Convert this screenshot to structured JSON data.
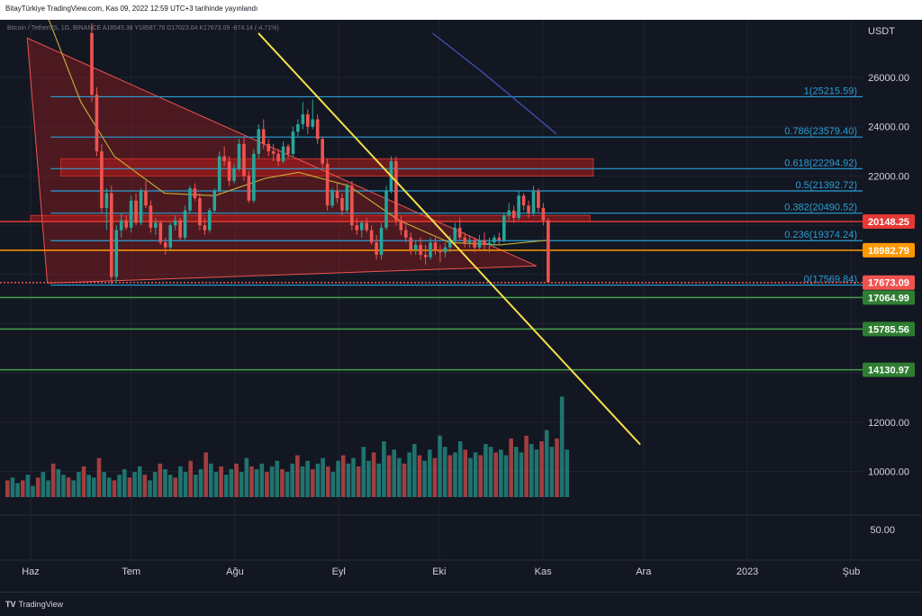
{
  "header": {
    "publisher_line": "BitayTürkiye TradingView.com, Kas 09, 2022 12:59 UTC+3 tarihinde yayınlandı"
  },
  "legend": {
    "symbol_line": "Bitcoin / TetherUS, 1G, BINANCE",
    "ohlc": "A18545.38 Y18587.76 D17023.04 K17673.09 -874.14 (-4.71%)"
  },
  "footer": {
    "logo_mark": "TV",
    "logo_text": "TradingView"
  },
  "colors": {
    "background": "#131722",
    "grid": "#1f2433",
    "candle_up": "#26a69a",
    "candle_down": "#ef5350",
    "trendline": "#f5e04a",
    "fib": "#2a9fd6",
    "resistance": "#e53935",
    "orange": "#ff9800",
    "support": "#43a047",
    "ma_slow": "#3f51b5",
    "ma_fast": "#c9b037",
    "zone": "#b71c1c"
  },
  "chart_data": {
    "type": "candlestick",
    "axis_unit": "USDT",
    "y_ticks": [
      26000,
      24000,
      22000,
      20000,
      18000,
      16000,
      14000,
      12000,
      10000
    ],
    "y_tick_labels": [
      "26000.00",
      "24000.00",
      "22000.00",
      "",
      "",
      "",
      "",
      "12000.00",
      "10000.00"
    ],
    "sub_pane_tick": {
      "value": 50,
      "label": "50.00"
    },
    "x_labels": [
      {
        "day": 0,
        "label": "Haz"
      },
      {
        "day": 30,
        "label": "Tem"
      },
      {
        "day": 61,
        "label": "Ağu"
      },
      {
        "day": 92,
        "label": "Eyl"
      },
      {
        "day": 122,
        "label": "Eki"
      },
      {
        "day": 153,
        "label": "Kas"
      },
      {
        "day": 183,
        "label": "Ara"
      },
      {
        "day": 214,
        "label": "2023"
      },
      {
        "day": 245,
        "label": "Şub"
      }
    ],
    "fib_levels": [
      {
        "ratio": "1",
        "value": 25215.59,
        "label": "1(25215.59)"
      },
      {
        "ratio": "0.786",
        "value": 23579.4,
        "label": "0.786(23579.40)"
      },
      {
        "ratio": "0.618",
        "value": 22294.92,
        "label": "0.618(22294.92)"
      },
      {
        "ratio": "0.5",
        "value": 21392.72,
        "label": "0.5(21392.72)"
      },
      {
        "ratio": "0.382",
        "value": 20490.52,
        "label": "0.382(20490.52)"
      },
      {
        "ratio": "0.236",
        "value": 19374.24,
        "label": "0.236(19374.24)"
      },
      {
        "ratio": "0",
        "value": 17569.84,
        "label": "0(17569.84)"
      }
    ],
    "price_lines": [
      {
        "value": 20148.25,
        "label": "20148.25",
        "color": "#e53935"
      },
      {
        "value": 18982.79,
        "label": "18982.79",
        "color": "#ff9800"
      },
      {
        "value": 17673.09,
        "label": "17673.09",
        "color": "#ef5350"
      },
      {
        "value": 17064.99,
        "label": "17064.99",
        "color": "#2e7d32"
      },
      {
        "value": 15785.56,
        "label": "15785.56",
        "color": "#2e7d32"
      },
      {
        "value": 14130.97,
        "label": "14130.97",
        "color": "#2e7d32"
      }
    ],
    "resistance_zones": [
      {
        "day_start": 9,
        "day_end": 168,
        "top": 22700,
        "bottom": 22000
      },
      {
        "day_start": 0,
        "day_end": 167,
        "top": 20400,
        "bottom": 20150
      }
    ],
    "triangle": [
      [
        -1,
        27600
      ],
      [
        5,
        17650
      ],
      [
        151,
        18350
      ]
    ],
    "trendline": [
      [
        68,
        27800
      ],
      [
        182,
        11100
      ]
    ],
    "ma_slow": [
      [
        120,
        27800
      ],
      [
        135,
        26200
      ],
      [
        150,
        24500
      ],
      [
        157,
        23700
      ]
    ],
    "ma_fast": [
      [
        5,
        28500
      ],
      [
        15,
        25000
      ],
      [
        25,
        22800
      ],
      [
        40,
        21300
      ],
      [
        55,
        21200
      ],
      [
        70,
        21900
      ],
      [
        80,
        22150
      ],
      [
        95,
        21600
      ],
      [
        110,
        20200
      ],
      [
        125,
        19300
      ],
      [
        140,
        19200
      ],
      [
        155,
        19400
      ]
    ],
    "candles": [
      [
        17,
        27800,
        28200,
        25000,
        25300
      ],
      [
        18,
        25300,
        25600,
        22800,
        23000
      ],
      [
        19,
        23000,
        23300,
        20500,
        20700
      ],
      [
        20,
        20700,
        21500,
        19800,
        21300
      ],
      [
        21,
        21300,
        21600,
        17600,
        17900
      ],
      [
        22,
        17900,
        20000,
        17650,
        19800
      ],
      [
        23,
        19800,
        20500,
        19500,
        20200
      ],
      [
        24,
        20200,
        20400,
        19800,
        19900
      ],
      [
        25,
        19900,
        21200,
        19700,
        21000
      ],
      [
        26,
        21000,
        21300,
        20000,
        20100
      ],
      [
        27,
        20100,
        21500,
        20000,
        21400
      ],
      [
        28,
        21400,
        21800,
        20700,
        20800
      ],
      [
        29,
        20800,
        21000,
        19700,
        19900
      ],
      [
        30,
        19900,
        20300,
        19600,
        20100
      ],
      [
        31,
        20100,
        20200,
        19200,
        19300
      ],
      [
        32,
        19300,
        19500,
        18800,
        19100
      ],
      [
        33,
        19100,
        20100,
        19000,
        20000
      ],
      [
        34,
        20000,
        20400,
        19800,
        20200
      ],
      [
        35,
        20200,
        20300,
        19400,
        19500
      ],
      [
        36,
        19500,
        20800,
        19400,
        20600
      ],
      [
        37,
        20600,
        21600,
        20500,
        21500
      ],
      [
        38,
        21500,
        21700,
        21000,
        21100
      ],
      [
        39,
        21100,
        21300,
        19800,
        20000
      ],
      [
        40,
        20000,
        20300,
        19600,
        19800
      ],
      [
        41,
        19800,
        20700,
        19700,
        20600
      ],
      [
        42,
        20600,
        21500,
        20500,
        21400
      ],
      [
        43,
        21400,
        23000,
        21300,
        22800
      ],
      [
        44,
        22800,
        23200,
        22400,
        22600
      ],
      [
        45,
        22600,
        22800,
        21600,
        21800
      ],
      [
        46,
        21800,
        22500,
        21700,
        22300
      ],
      [
        47,
        22300,
        23500,
        22200,
        23300
      ],
      [
        48,
        23300,
        23600,
        21800,
        22000
      ],
      [
        49,
        22000,
        22200,
        20900,
        21000
      ],
      [
        50,
        21000,
        23100,
        20900,
        22900
      ],
      [
        51,
        22900,
        24100,
        22700,
        23900
      ],
      [
        52,
        23900,
        24300,
        23100,
        23300
      ],
      [
        53,
        23300,
        23500,
        22800,
        23000
      ],
      [
        54,
        23000,
        23300,
        22600,
        22900
      ],
      [
        55,
        22900,
        23100,
        22400,
        22600
      ],
      [
        56,
        22600,
        23400,
        22500,
        23200
      ],
      [
        57,
        23200,
        23300,
        22700,
        22900
      ],
      [
        58,
        22900,
        24000,
        22800,
        23800
      ],
      [
        59,
        23800,
        24300,
        23600,
        24100
      ],
      [
        60,
        24100,
        25000,
        23900,
        24500
      ],
      [
        61,
        24500,
        24700,
        23700,
        24000
      ],
      [
        62,
        24000,
        25100,
        23900,
        24300
      ],
      [
        63,
        24300,
        24500,
        23300,
        23500
      ],
      [
        64,
        23500,
        23600,
        22300,
        22500
      ],
      [
        65,
        22500,
        22700,
        20600,
        20800
      ],
      [
        66,
        20800,
        21500,
        20700,
        21400
      ],
      [
        67,
        21400,
        21700,
        20900,
        21100
      ],
      [
        68,
        21100,
        21300,
        20400,
        20600
      ],
      [
        69,
        20600,
        21700,
        20500,
        21600
      ],
      [
        70,
        21600,
        21800,
        19800,
        20000
      ],
      [
        71,
        20000,
        20300,
        19600,
        19800
      ],
      [
        72,
        19800,
        20200,
        19500,
        20100
      ],
      [
        73,
        20100,
        20300,
        19700,
        19800
      ],
      [
        74,
        19800,
        20000,
        19200,
        19300
      ],
      [
        75,
        19300,
        19600,
        18600,
        18800
      ],
      [
        76,
        18800,
        20100,
        18600,
        19900
      ],
      [
        77,
        19900,
        21600,
        19800,
        21400
      ],
      [
        78,
        21400,
        22800,
        21300,
        22600
      ],
      [
        79,
        22600,
        22800,
        20000,
        20200
      ],
      [
        80,
        20200,
        20400,
        19600,
        19800
      ],
      [
        81,
        19800,
        20100,
        19300,
        19500
      ],
      [
        82,
        19500,
        19700,
        18800,
        19000
      ],
      [
        83,
        19000,
        19400,
        18800,
        19200
      ],
      [
        84,
        19200,
        19500,
        18600,
        18800
      ],
      [
        85,
        18800,
        19200,
        18400,
        18700
      ],
      [
        86,
        18700,
        19500,
        18600,
        19300
      ],
      [
        87,
        19300,
        19500,
        18800,
        19000
      ],
      [
        88,
        19000,
        19200,
        18500,
        18900
      ],
      [
        89,
        18900,
        19300,
        18700,
        19100
      ],
      [
        90,
        19100,
        19600,
        18900,
        19400
      ],
      [
        91,
        19400,
        20100,
        19200,
        19900
      ],
      [
        92,
        19900,
        20300,
        19400,
        19500
      ],
      [
        93,
        19500,
        19700,
        19100,
        19300
      ],
      [
        94,
        19300,
        19600,
        19100,
        19400
      ],
      [
        95,
        19400,
        19500,
        18900,
        19100
      ],
      [
        96,
        19100,
        19600,
        19000,
        19400
      ],
      [
        97,
        19400,
        19700,
        19000,
        19200
      ],
      [
        98,
        19200,
        19500,
        18900,
        19300
      ],
      [
        99,
        19300,
        19600,
        19100,
        19500
      ],
      [
        100,
        19500,
        19700,
        19200,
        19400
      ],
      [
        101,
        19400,
        20500,
        19300,
        20400
      ],
      [
        102,
        20400,
        20900,
        20200,
        20600
      ],
      [
        103,
        20600,
        20800,
        20100,
        20300
      ],
      [
        104,
        20300,
        21400,
        20200,
        21200
      ],
      [
        105,
        21200,
        21300,
        20600,
        20800
      ],
      [
        106,
        20800,
        21000,
        20300,
        20500
      ],
      [
        107,
        20500,
        21600,
        20400,
        21400
      ],
      [
        108,
        21400,
        21500,
        20500,
        20700
      ],
      [
        109,
        20700,
        20900,
        20000,
        20200
      ],
      [
        110,
        20200,
        20300,
        17650,
        17700
      ]
    ],
    "volume": [
      6,
      7,
      5,
      6,
      8,
      4,
      7,
      9,
      6,
      12,
      10,
      8,
      7,
      6,
      9,
      11,
      8,
      7,
      14,
      9,
      7,
      6,
      8,
      10,
      7,
      9,
      11,
      8,
      6,
      9,
      12,
      10,
      8,
      7,
      11,
      9,
      13,
      8,
      10,
      16,
      12,
      9,
      11,
      8,
      10,
      12,
      9,
      14,
      11,
      10,
      12,
      9,
      11,
      13,
      10,
      9,
      12,
      15,
      11,
      13,
      10,
      12,
      14,
      11,
      9,
      13,
      15,
      12,
      14,
      11,
      18,
      13,
      16,
      12,
      20,
      15,
      17,
      14,
      12,
      16,
      19,
      15,
      13,
      17,
      14,
      22,
      18,
      15,
      16,
      20,
      17,
      14,
      16,
      15,
      19,
      18,
      16,
      17,
      15,
      21,
      18,
      16,
      22,
      19,
      17,
      20,
      24,
      18,
      21,
      36,
      17
    ]
  }
}
